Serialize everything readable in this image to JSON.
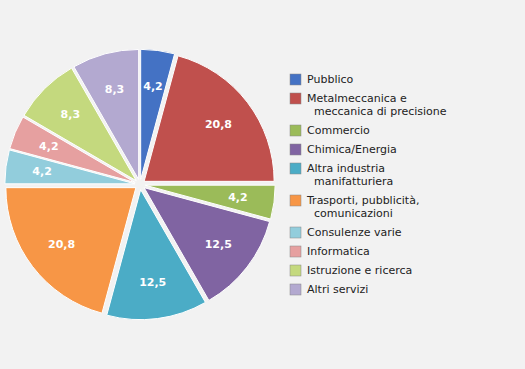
{
  "chart_data": {
    "type": "pie",
    "categories": [
      "Pubblico",
      "Metalmeccanica e\n  meccanica di precisione",
      "Commercio",
      "Chimica/Energia",
      "Altra industria\n  manifatturiera",
      "Trasporti, pubblicità,\n  comunicazioni",
      "Consulenze varie",
      "Informatica",
      "Istruzione e ricerca",
      "Altri servizi"
    ],
    "values": [
      4.2,
      20.8,
      4.2,
      12.5,
      12.5,
      20.8,
      4.2,
      4.2,
      8.3,
      8.3
    ],
    "value_labels": [
      "4,2",
      "20,8",
      "4,2",
      "12,5",
      "12,5",
      "20,8",
      "4,2",
      "4,2",
      "8,3",
      "8,3"
    ],
    "colors": [
      "#4472C4",
      "#C0504D",
      "#9BBB59",
      "#8064A2",
      "#4BACC6",
      "#F79646",
      "#92CDDC",
      "#E6A0A0",
      "#C4D97E",
      "#B3A9D0"
    ],
    "data_labels": true
  }
}
